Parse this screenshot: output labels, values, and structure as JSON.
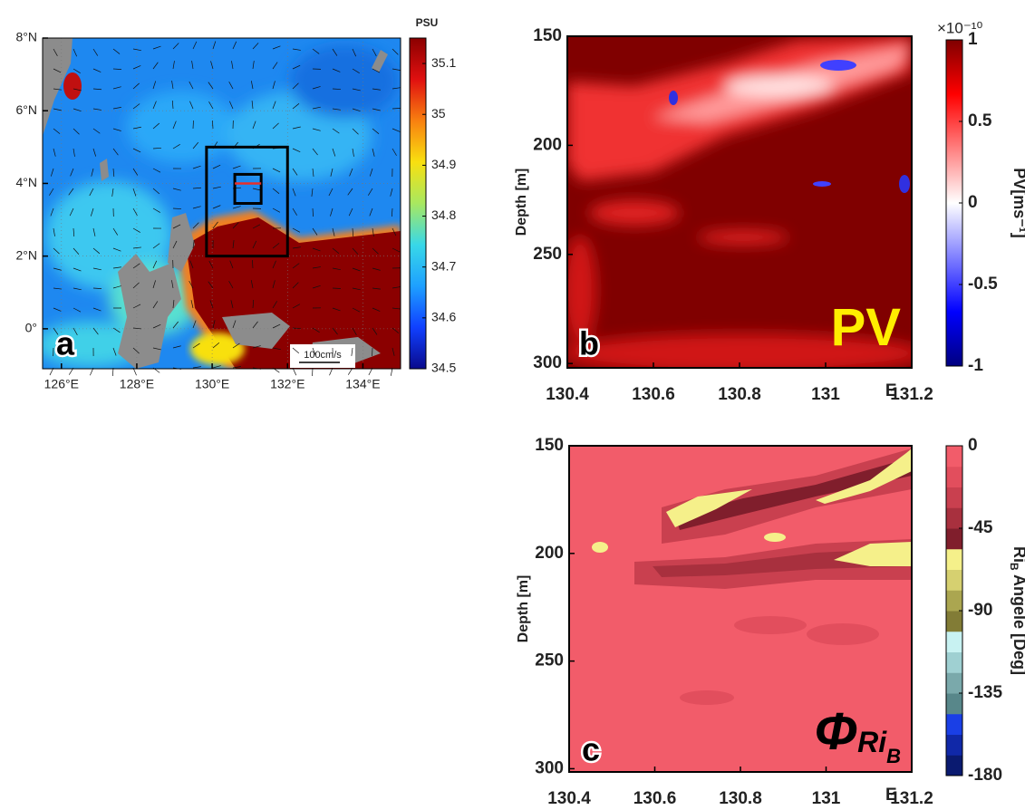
{
  "chart_data": [
    {
      "type": "map",
      "panel": "a",
      "xlim": [
        125.5,
        135
      ],
      "ylim": [
        -1.1,
        8
      ],
      "xticks": [
        {
          "value": 126,
          "label": "126°E"
        },
        {
          "value": 128,
          "label": "128°E"
        },
        {
          "value": 130,
          "label": "130°E"
        },
        {
          "value": 132,
          "label": "132°E"
        },
        {
          "value": 134,
          "label": "134°E"
        }
      ],
      "yticks": [
        {
          "value": 0,
          "label": "0°"
        },
        {
          "value": 2,
          "label": "2°N"
        },
        {
          "value": 4,
          "label": "4°N"
        },
        {
          "value": 6,
          "label": "6°N"
        },
        {
          "value": 8,
          "label": "8°N"
        }
      ],
      "boxes": [
        {
          "xlim": [
            129.85,
            132
          ],
          "ylim": [
            2,
            5
          ]
        },
        {
          "xlim": [
            130.6,
            131.3
          ],
          "ylim": [
            3.45,
            4.25
          ]
        }
      ],
      "section": {
        "x": [
          130.6,
          131.3
        ],
        "y": [
          4,
          4
        ],
        "color": "#e8302a"
      },
      "scale_label": "100cm/s",
      "colorbar": {
        "title": "PSU",
        "lim": [
          34.5,
          35.15
        ],
        "ticks": [
          34.5,
          34.6,
          34.7,
          34.8,
          34.9,
          35,
          35.1
        ],
        "colors": [
          "#0a0a8c",
          "#1040ff",
          "#1ea0ff",
          "#38d8e8",
          "#a8e860",
          "#f8e010",
          "#f88010",
          "#e01010",
          "#8b0000"
        ]
      }
    },
    {
      "type": "heatmap",
      "panel": "b",
      "annotation": "PV",
      "annotation_color": "#ffee00",
      "xlim": [
        130.4,
        131.2
      ],
      "ylim": [
        150,
        302
      ],
      "y_reversed": true,
      "xticks": [
        130.4,
        130.6,
        130.8,
        131,
        131.2
      ],
      "yticks": [
        150,
        200,
        250,
        300
      ],
      "ylabel": "Depth [m]",
      "x_unit": "E",
      "colorbar": {
        "label": "PV[ms⁻¹]",
        "multiplier": "×10⁻¹⁰",
        "lim": [
          -1,
          1
        ],
        "ticks": [
          1,
          0.5,
          0,
          -0.5,
          -1
        ],
        "colors": [
          "#00007f",
          "#0000ff",
          "#8080ff",
          "#ffffff",
          "#ff8080",
          "#ff0000",
          "#7f0000"
        ]
      }
    },
    {
      "type": "heatmap",
      "panel": "c",
      "annotation": "Φ",
      "annotation_sub": "Ri",
      "annotation_subsub": "B",
      "annotation_color": "#000000",
      "xlim": [
        130.4,
        131.2
      ],
      "ylim": [
        150,
        301.5
      ],
      "y_reversed": true,
      "xticks": [
        130.4,
        130.6,
        130.8,
        131,
        131.2
      ],
      "yticks": [
        150,
        200,
        250,
        300
      ],
      "ylabel": "Depth [m]",
      "x_unit": "E",
      "colorbar": {
        "label": "Ri",
        "label_sub": "B",
        "label_rest": " Angele [Deg]",
        "lim": [
          -180,
          0
        ],
        "ticks": [
          0,
          -45,
          -90,
          -135,
          -180
        ],
        "discrete": true,
        "colors": [
          "#0a1a70",
          "#1028a8",
          "#1a3fe6",
          "#58878a",
          "#7aa9ab",
          "#9fd0d2",
          "#c8f2f2",
          "#827c36",
          "#aba650",
          "#d6d070",
          "#f5f08a",
          "#801e2c",
          "#a8303e",
          "#c9404f",
          "#e24e5d",
          "#f25c6a"
        ]
      }
    }
  ]
}
